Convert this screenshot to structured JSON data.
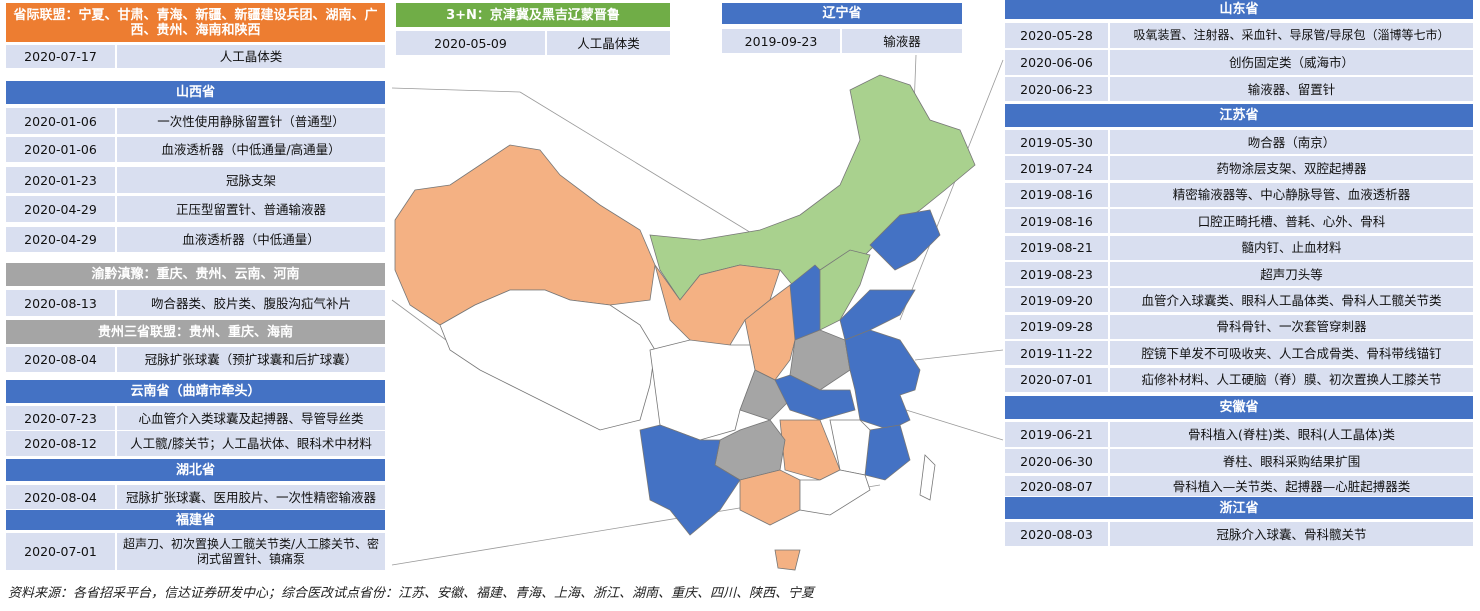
{
  "panels": [
    {
      "title": "省际联盟：宁夏、甘肃、青海、新疆、新疆建设兵团、湖南、广西、贵州、海南和陕西",
      "rows": [
        [
          "2020-07-17",
          "人工晶体类"
        ]
      ]
    },
    {
      "title": "山西省",
      "rows": [
        [
          "2020-01-06",
          "一次性使用静脉留置针（普通型）"
        ],
        [
          "2020-01-06",
          "血液透析器（中低通量/高通量）"
        ],
        [
          "2020-01-23",
          "冠脉支架"
        ],
        [
          "2020-04-29",
          "正压型留置针、普通输液器"
        ],
        [
          "2020-04-29",
          "血液透析器（中低通量）"
        ]
      ]
    },
    {
      "title": "渝黔滇豫：重庆、贵州、云南、河南",
      "rows": [
        [
          "2020-08-13",
          "吻合器类、胶片类、腹股沟疝气补片"
        ]
      ]
    },
    {
      "title": "贵州三省联盟：贵州、重庆、海南",
      "rows": [
        [
          "2020-08-04",
          "冠脉扩张球囊（预扩球囊和后扩球囊）"
        ]
      ]
    },
    {
      "title": "云南省（曲靖市牵头）",
      "rows": [
        [
          "2020-07-23",
          "心血管介入类球囊及起搏器、导管导丝类"
        ],
        [
          "2020-08-12",
          "人工髋/膝关节；人工晶状体、眼科术中材料"
        ]
      ]
    },
    {
      "title": "湖北省",
      "rows": [
        [
          "2020-08-04",
          "冠脉扩张球囊、医用胶片、一次性精密输液器"
        ]
      ]
    },
    {
      "title": "福建省",
      "rows": [
        [
          "2020-07-01",
          "超声刀、初次置换人工髋关节类/人工膝关节、密闭式留置针、镇痛泵"
        ]
      ]
    },
    {
      "title": "3+N：京津冀及黑吉辽蒙晋鲁",
      "rows": [
        [
          "2020-05-09",
          "人工晶体类"
        ]
      ]
    },
    {
      "title": "辽宁省",
      "rows": [
        [
          "2019-09-23",
          "输液器"
        ]
      ]
    },
    {
      "title": "山东省",
      "rows": [
        [
          "2020-05-28",
          "吸氧装置、注射器、采血针、导尿管/导尿包（淄博等七市）"
        ],
        [
          "2020-06-06",
          "创伤固定类（威海市）"
        ],
        [
          "2020-06-23",
          "输液器、留置针"
        ]
      ]
    },
    {
      "title": "江苏省",
      "rows": [
        [
          "2019-05-30",
          "吻合器（南京）"
        ],
        [
          "2019-07-24",
          "药物涂层支架、双腔起搏器"
        ],
        [
          "2019-08-16",
          "精密输液器等、中心静脉导管、血液透析器"
        ],
        [
          "2019-08-16",
          "口腔正畸托槽、普耗、心外、骨科"
        ],
        [
          "2019-08-21",
          "髓内钉、止血材料"
        ],
        [
          "2019-08-23",
          "超声刀头等"
        ],
        [
          "2019-09-20",
          "血管介入球囊类、眼科人工晶体类、骨科人工髋关节类"
        ],
        [
          "2019-09-28",
          "骨科骨针、一次套管穿刺器"
        ],
        [
          "2019-11-22",
          "腔镜下单发不可吸收夹、人工合成骨类、骨科带线锚钉"
        ],
        [
          "2020-07-01",
          "疝修补材料、人工硬脑（脊）膜、初次置换人工膝关节"
        ]
      ]
    },
    {
      "title": "安徽省",
      "rows": [
        [
          "2019-06-21",
          "骨科植入(脊柱)类、眼科(人工晶体)类"
        ],
        [
          "2020-06-30",
          "脊柱、眼科采购结果扩围"
        ],
        [
          "2020-08-07",
          "骨科植入—关节类、起搏器—心脏起搏器类"
        ]
      ]
    },
    {
      "title": "浙江省",
      "rows": [
        [
          "2020-08-03",
          "冠脉介入球囊、骨科髋关节"
        ]
      ]
    }
  ],
  "footer": {
    "source": "资料来源：各省招采平台，信达证券研发中心；综合医改试点省份：江苏、安徽、福建、青海、上海、浙江、湖南、重庆、四川、陕西、宁夏"
  }
}
